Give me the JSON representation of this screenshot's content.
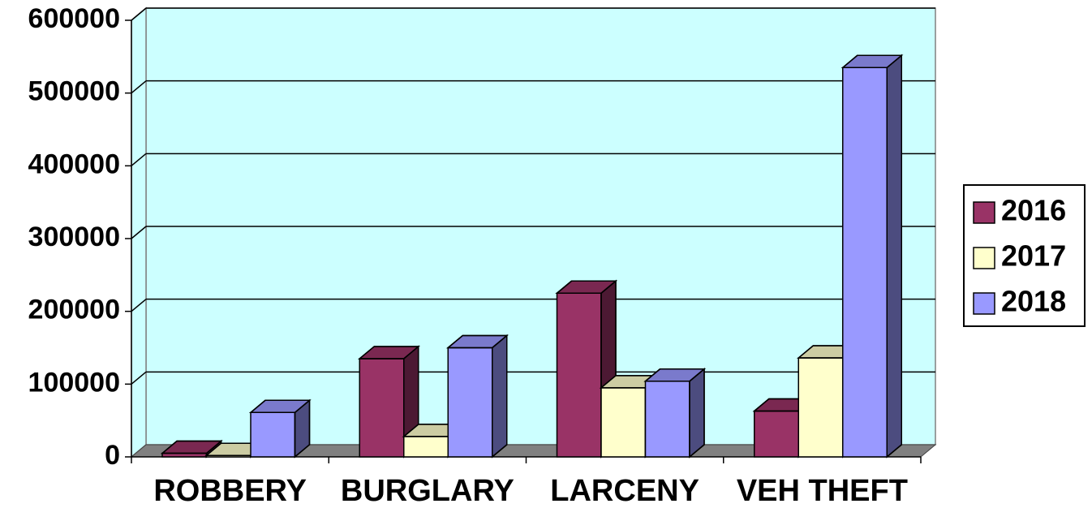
{
  "chart_data": {
    "type": "bar3d",
    "categories": [
      "ROBBERY",
      "BURGLARY",
      "LARCENY",
      "VEH THEFT"
    ],
    "series": [
      {
        "name": "2016",
        "color": "#993366",
        "values": [
          5000,
          135000,
          225000,
          63000
        ]
      },
      {
        "name": "2017",
        "color": "#ffffcc",
        "values": [
          2000,
          28000,
          95000,
          136000
        ]
      },
      {
        "name": "2018",
        "color": "#9999ff",
        "values": [
          61000,
          150000,
          104000,
          535000
        ]
      }
    ],
    "ylim": [
      0,
      600000
    ],
    "yticks": [
      0,
      100000,
      200000,
      300000,
      400000,
      500000,
      600000
    ],
    "grid": true,
    "legend": "right"
  }
}
